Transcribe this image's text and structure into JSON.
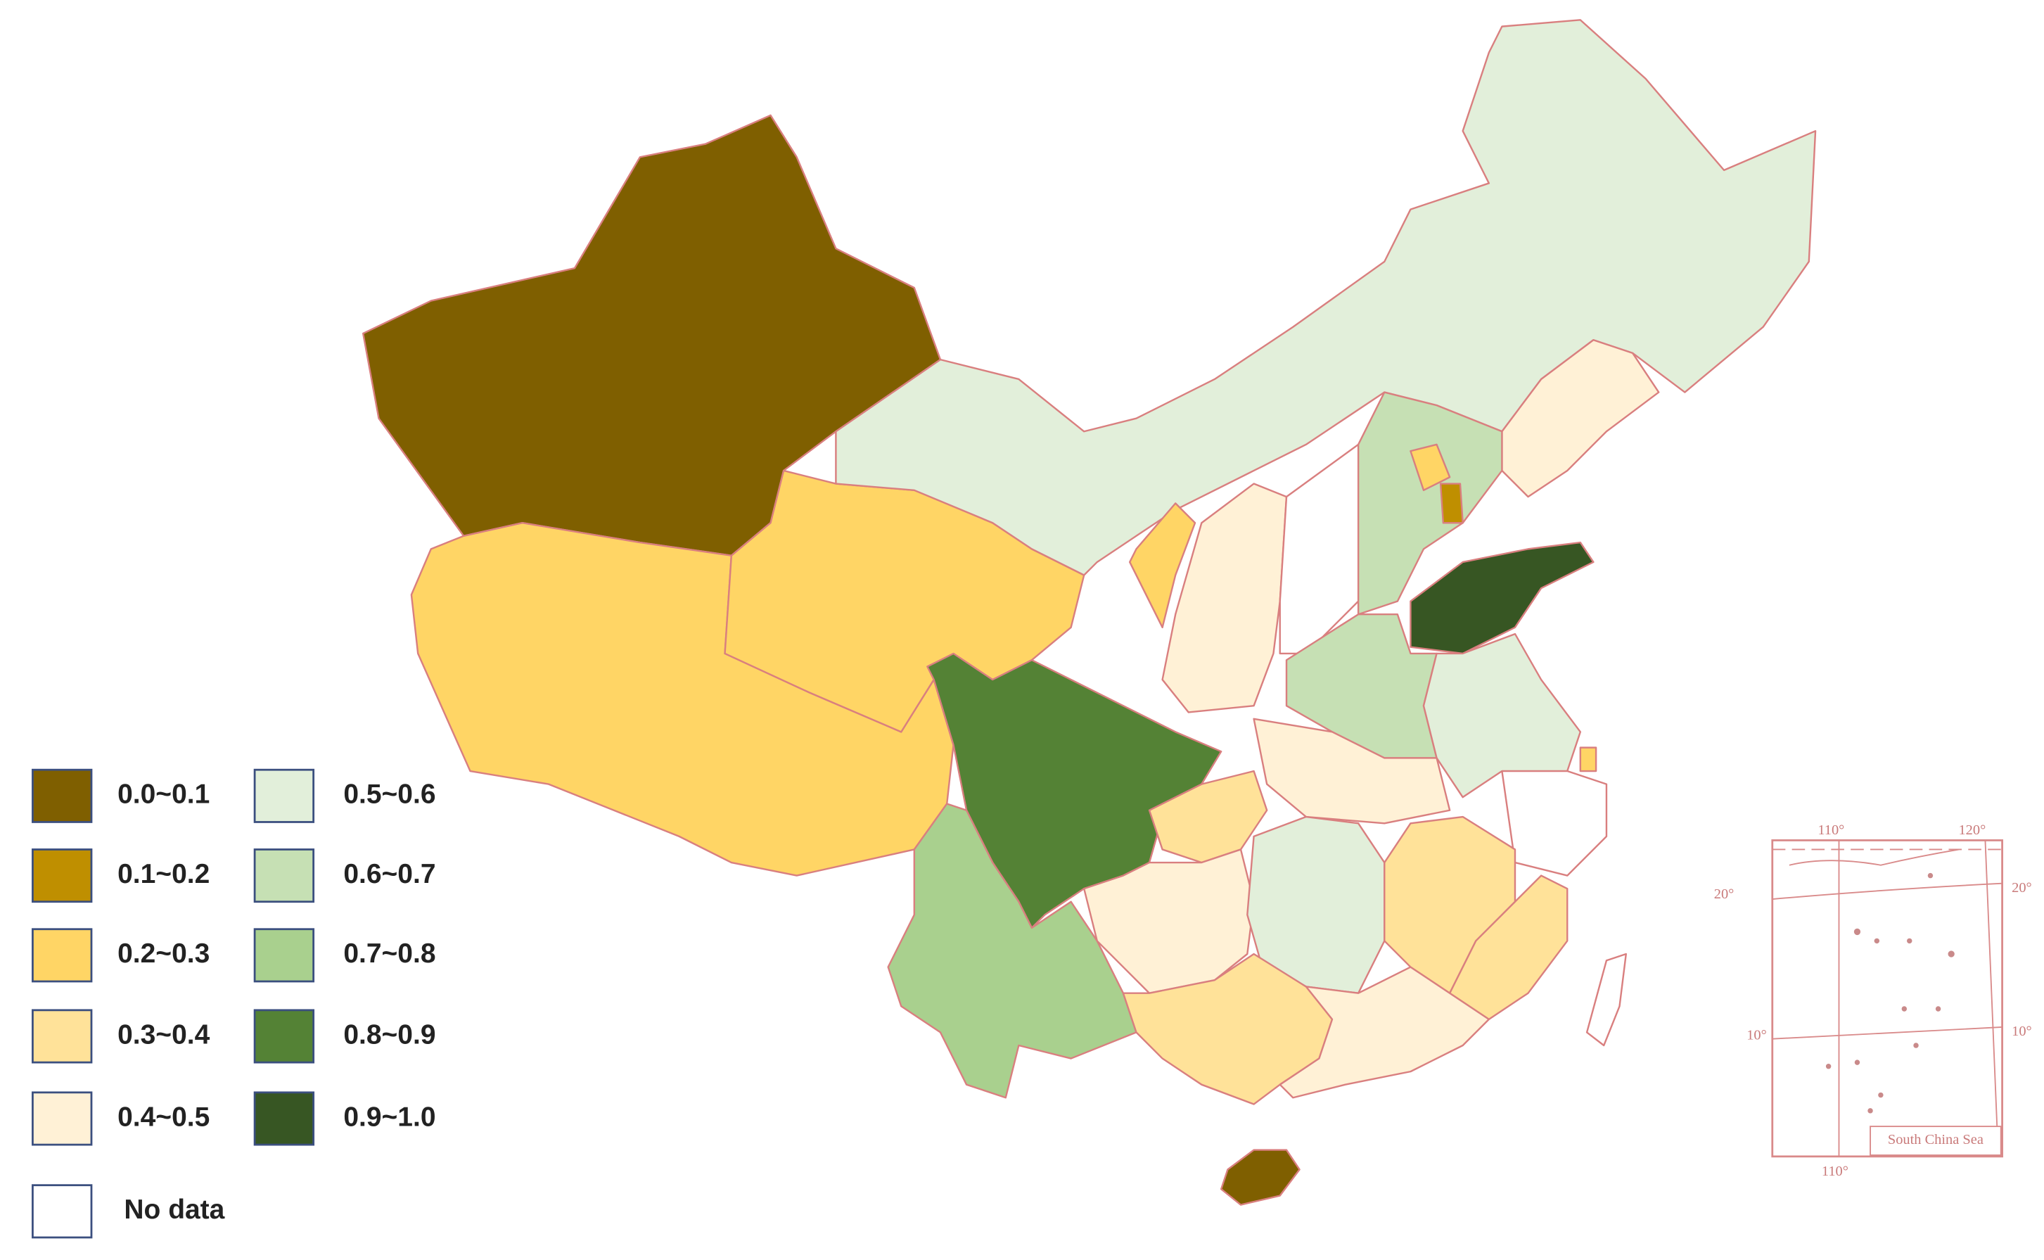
{
  "legend": {
    "items": [
      {
        "label": "0.0~0.1",
        "color": "#7f5f00"
      },
      {
        "label": "0.1~0.2",
        "color": "#bf8f00"
      },
      {
        "label": "0.2~0.3",
        "color": "#ffd565"
      },
      {
        "label": "0.3~0.4",
        "color": "#ffe299"
      },
      {
        "label": "0.4~0.5",
        "color": "#fff1d6"
      },
      {
        "label": "0.5~0.6",
        "color": "#e2efda"
      },
      {
        "label": "0.6~0.7",
        "color": "#c6e0b4"
      },
      {
        "label": "0.7~0.8",
        "color": "#a9d08e"
      },
      {
        "label": "0.8~0.9",
        "color": "#548235"
      },
      {
        "label": "0.9~1.0",
        "color": "#375623"
      }
    ],
    "no_data": "No data"
  },
  "inset": {
    "title": "South China Sea",
    "labels": [
      "110°",
      "120°",
      "20°",
      "20°",
      "10°",
      "10°",
      "110°"
    ]
  }
}
